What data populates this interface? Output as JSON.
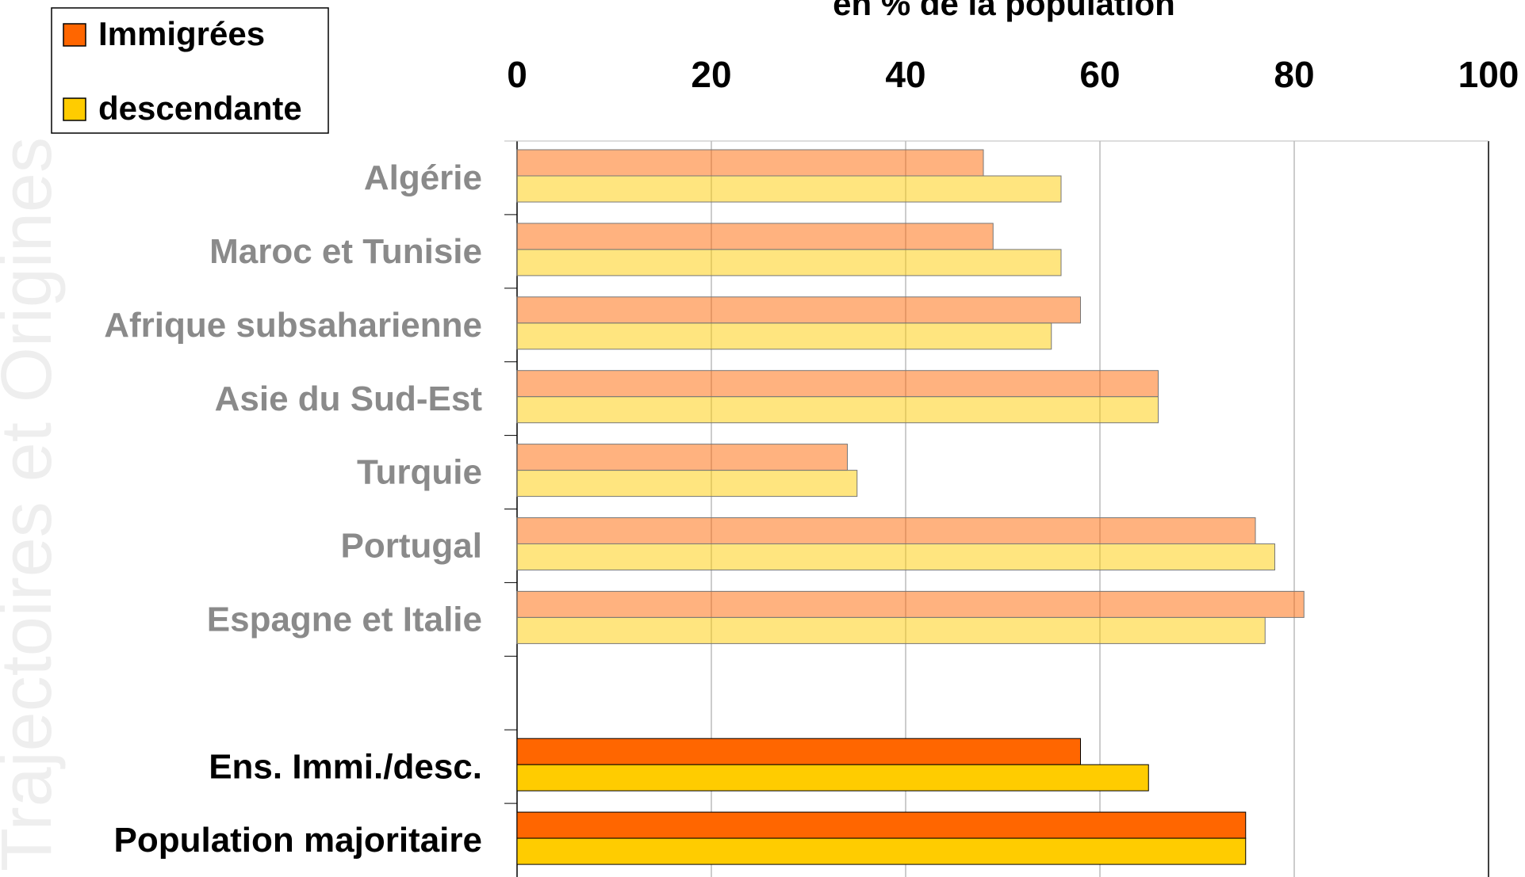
{
  "chart_data": {
    "type": "hbar",
    "title": "en % de la population",
    "watermark": "Trajectoires et Origines",
    "categories": [
      "Algérie",
      "Maroc et Tunisie",
      "Afrique subsaharienne",
      "Asie du Sud-Est",
      "Turquie",
      "Portugal",
      "Espagne et Italie",
      null,
      "Ens. Immi./desc.",
      "Population majoritaire"
    ],
    "series": [
      {
        "name": "Immigrées",
        "color": "#ff6600",
        "values": [
          48,
          49,
          58,
          66,
          34,
          76,
          81,
          null,
          58,
          75
        ]
      },
      {
        "name": "descendante",
        "color": "#ffcc00",
        "values": [
          56,
          56,
          55,
          66,
          35,
          78,
          77,
          null,
          65,
          75
        ]
      }
    ],
    "xlim": [
      0,
      100
    ],
    "xticks": [
      0,
      20,
      40,
      60,
      80,
      100
    ],
    "grid": true,
    "legend": "top-left"
  }
}
